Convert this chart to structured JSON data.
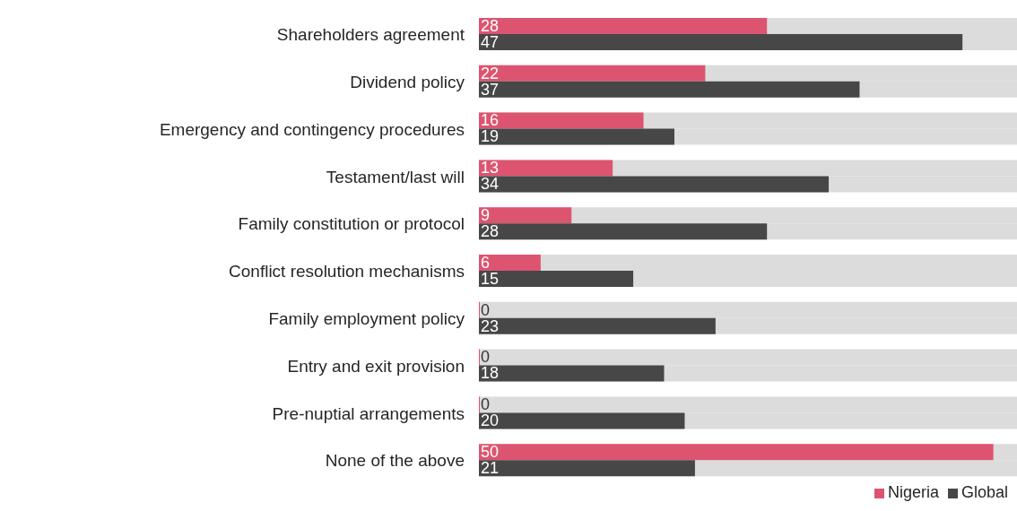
{
  "chart_data": {
    "type": "bar",
    "orientation": "horizontal",
    "categories": [
      "Shareholders agreement",
      "Dividend policy",
      "Emergency and contingency procedures",
      "Testament/last will",
      "Family constitution or protocol",
      "Conflict resolution mechanisms",
      "Family employment policy",
      "Entry and exit provision",
      "Pre-nuptial arrangements",
      "None of the above"
    ],
    "series": [
      {
        "name": "Nigeria",
        "color": "#dd5470",
        "values": [
          28,
          22,
          16,
          13,
          9,
          6,
          0,
          0,
          0,
          50
        ]
      },
      {
        "name": "Global",
        "color": "#474747",
        "values": [
          47,
          37,
          19,
          34,
          28,
          15,
          23,
          18,
          20,
          21
        ]
      }
    ],
    "data_labels": true,
    "legend": "bottom right"
  }
}
